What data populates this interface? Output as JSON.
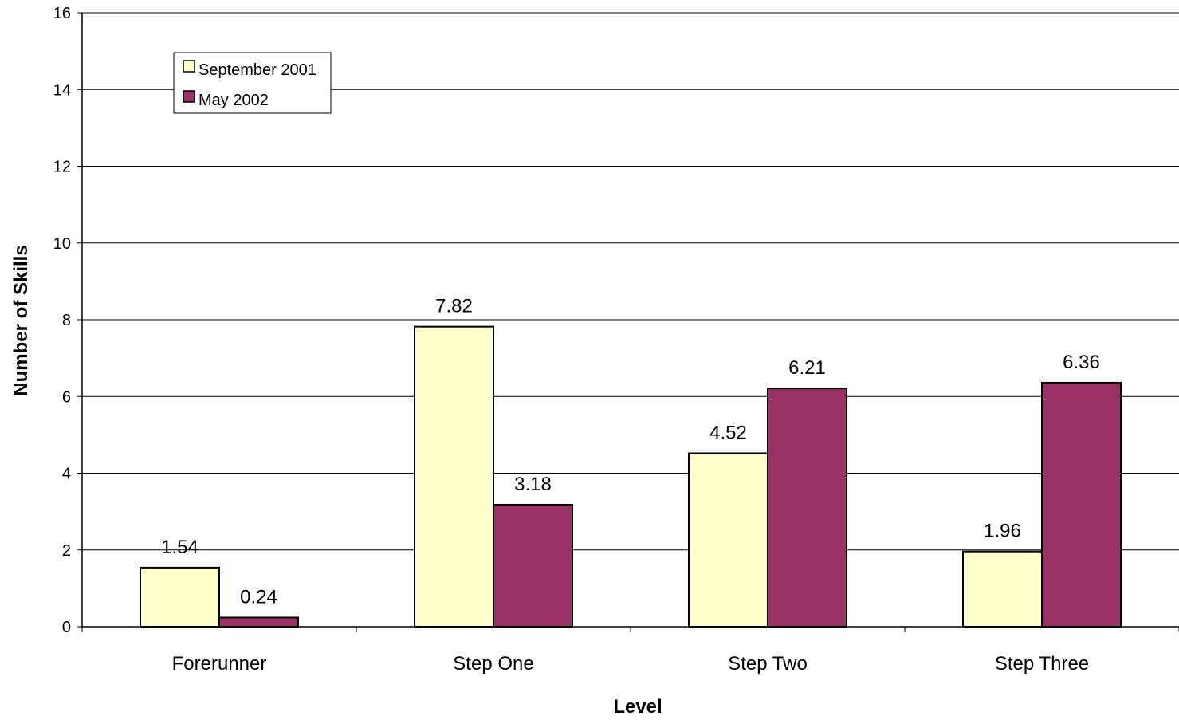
{
  "chart_data": {
    "type": "bar",
    "title": "",
    "xlabel": "Level",
    "ylabel": "Number of Skills",
    "categories": [
      "Forerunner",
      "Step One",
      "Step Two",
      "Step Three"
    ],
    "series": [
      {
        "name": "September 2001",
        "values": [
          1.54,
          7.82,
          4.52,
          1.96
        ],
        "labels": [
          "1.54",
          "7.82",
          "4.52",
          "1.96"
        ],
        "color": "#FFFFCC"
      },
      {
        "name": "May 2002",
        "values": [
          0.24,
          3.18,
          6.21,
          6.36
        ],
        "labels": [
          "0.24",
          "3.18",
          "6.21",
          "6.36"
        ],
        "color": "#993366"
      }
    ],
    "ylim": [
      0,
      16
    ],
    "yticks": [
      "0",
      "2",
      "4",
      "6",
      "8",
      "10",
      "12",
      "14",
      "16"
    ],
    "grid": true,
    "legend_position": "top-left"
  }
}
